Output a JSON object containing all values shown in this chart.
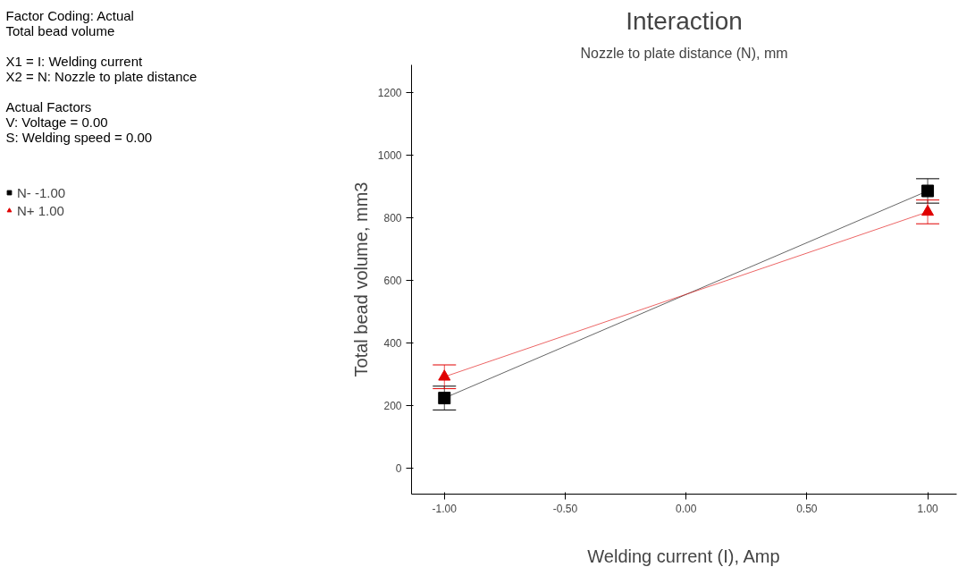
{
  "chart_data": {
    "type": "line",
    "title": "Interaction",
    "subtitle": "Nozzle to plate distance (N), mm",
    "xlabel": "Welding current (I), Amp",
    "ylabel": "Total bead volume, mm3",
    "x": [
      -1.0,
      1.0
    ],
    "series": [
      {
        "name": "N- -1.00",
        "color": "#000000",
        "marker": "square",
        "values": [
          225,
          887
        ],
        "errors": [
          38,
          39
        ]
      },
      {
        "name": "N+ 1.00",
        "color": "#e00000",
        "marker": "triangle",
        "values": [
          293,
          820
        ],
        "errors": [
          38,
          38
        ]
      }
    ],
    "xlim": [
      -1.136,
      1.12
    ],
    "ylim": [
      -82,
      1290
    ],
    "xticks": [
      {
        "value": -1,
        "label": "-1.00"
      },
      {
        "value": -0.5,
        "label": "-0.50"
      },
      {
        "value": 0,
        "label": "0.00"
      },
      {
        "value": 0.5,
        "label": "0.50"
      },
      {
        "value": 1,
        "label": "1.00"
      }
    ],
    "yticks": [
      0,
      200,
      400,
      600,
      800,
      1000,
      1200
    ],
    "grid": false,
    "legend": "left",
    "line_style": "solid",
    "annotations": [
      "Factor Coding: Actual",
      "Total bead volume",
      "X1 = I: Welding current",
      "X2 = N: Nozzle to plate distance",
      "Actual Factors",
      "V: Voltage = 0.00",
      "S: Welding speed = 0.00"
    ]
  }
}
